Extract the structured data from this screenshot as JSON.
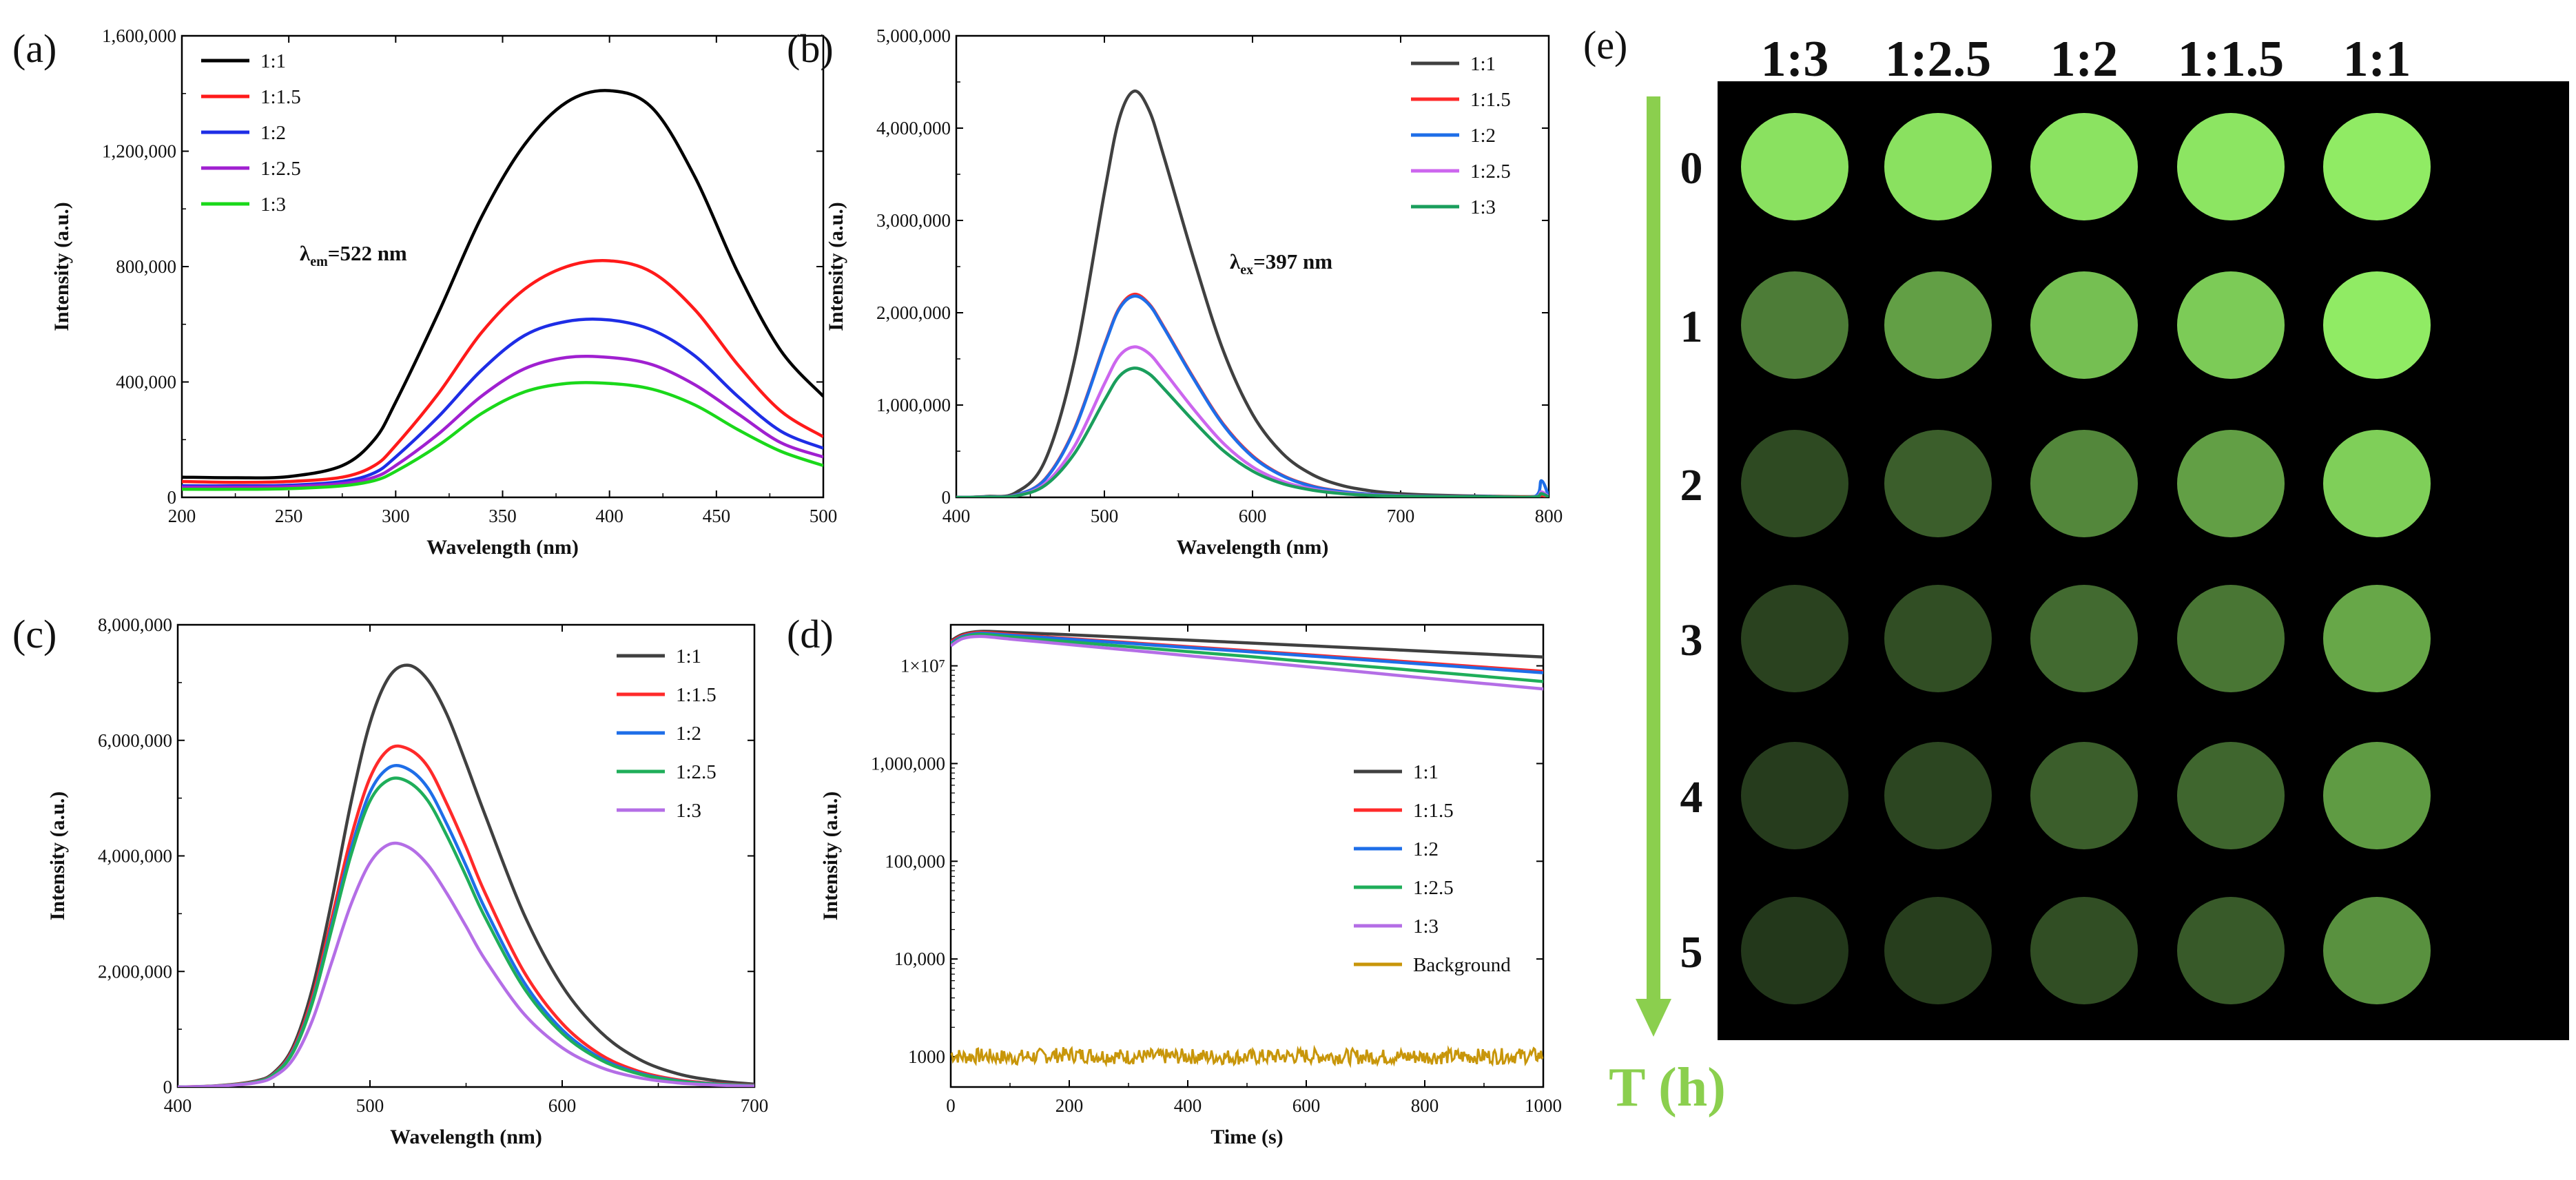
{
  "chart_data": [
    {
      "panel": "(a)",
      "type": "line",
      "xlabel": "Wavelength (nm)",
      "ylabel": "Intensity (a.u.)",
      "xlim": [
        200,
        500
      ],
      "ylim": [
        0,
        1600000
      ],
      "xticks": [
        200,
        250,
        300,
        350,
        400,
        450,
        500
      ],
      "yticks": [
        0,
        400000,
        800000,
        1200000,
        1600000
      ],
      "ytick_labels": [
        "0",
        "400,000",
        "800,000",
        "1,200,000",
        "1,600,000"
      ],
      "annotation": {
        "symbol": "λ",
        "sub": "em",
        "value": "=522 nm"
      },
      "legend_position": "top-left",
      "x": [
        200,
        225,
        250,
        275,
        290,
        300,
        320,
        340,
        360,
        380,
        400,
        420,
        440,
        460,
        480,
        500
      ],
      "series": [
        {
          "name": "1:1",
          "color": "#000000",
          "values": [
            70000,
            68000,
            72000,
            110000,
            200000,
            330000,
            640000,
            970000,
            1220000,
            1370000,
            1410000,
            1350000,
            1110000,
            780000,
            510000,
            350000
          ]
        },
        {
          "name": "1:1.5",
          "color": "#ff1a1a",
          "values": [
            55000,
            52000,
            55000,
            70000,
            110000,
            180000,
            360000,
            570000,
            720000,
            800000,
            820000,
            780000,
            650000,
            460000,
            300000,
            210000
          ]
        },
        {
          "name": "1:2",
          "color": "#1e2de6",
          "values": [
            40000,
            40000,
            42000,
            55000,
            85000,
            140000,
            280000,
            440000,
            560000,
            610000,
            615000,
            580000,
            490000,
            350000,
            230000,
            170000
          ]
        },
        {
          "name": "1:2.5",
          "color": "#a020d0",
          "values": [
            35000,
            35000,
            37000,
            48000,
            70000,
            110000,
            220000,
            350000,
            445000,
            485000,
            485000,
            460000,
            390000,
            290000,
            190000,
            140000
          ]
        },
        {
          "name": "1:3",
          "color": "#1ad81a",
          "values": [
            28000,
            28000,
            30000,
            40000,
            58000,
            90000,
            180000,
            290000,
            365000,
            395000,
            395000,
            375000,
            320000,
            235000,
            160000,
            110000
          ]
        }
      ]
    },
    {
      "panel": "(b)",
      "type": "line",
      "xlabel": "Wavelength (nm)",
      "ylabel": "Intensity (a.u.)",
      "xlim": [
        400,
        800
      ],
      "ylim": [
        0,
        5000000
      ],
      "xticks": [
        400,
        500,
        600,
        700,
        800
      ],
      "yticks": [
        0,
        1000000,
        2000000,
        3000000,
        4000000,
        5000000
      ],
      "ytick_labels": [
        "0",
        "1,000,000",
        "2,000,000",
        "3,000,000",
        "4,000,000",
        "5,000,000"
      ],
      "annotation": {
        "symbol": "λ",
        "sub": "ex",
        "value": "=397 nm"
      },
      "legend_position": "top-right",
      "x": [
        400,
        420,
        440,
        460,
        480,
        500,
        510,
        520,
        530,
        540,
        560,
        580,
        600,
        620,
        640,
        660,
        680,
        700,
        720,
        760,
        790,
        795,
        800
      ],
      "series": [
        {
          "name": "1:1",
          "color": "#404040",
          "values": [
            0,
            10000,
            50000,
            400000,
            1500000,
            3300000,
            4100000,
            4400000,
            4200000,
            3700000,
            2600000,
            1600000,
            900000,
            480000,
            250000,
            130000,
            70000,
            40000,
            25000,
            12000,
            8000,
            30000,
            10000
          ]
        },
        {
          "name": "1:1.5",
          "color": "#ff2a2a",
          "values": [
            0,
            5000,
            25000,
            200000,
            750000,
            1650000,
            2050000,
            2200000,
            2100000,
            1850000,
            1300000,
            800000,
            450000,
            240000,
            125000,
            65000,
            35000,
            20000,
            13000,
            8000,
            6000,
            20000,
            6000
          ]
        },
        {
          "name": "1:2",
          "color": "#1e6ee8",
          "values": [
            0,
            5000,
            25000,
            195000,
            740000,
            1640000,
            2040000,
            2180000,
            2090000,
            1840000,
            1290000,
            790000,
            440000,
            235000,
            120000,
            63000,
            34000,
            19000,
            12000,
            8000,
            6000,
            180000,
            10000
          ]
        },
        {
          "name": "1:2.5",
          "color": "#cc66ee",
          "values": [
            0,
            4000,
            19000,
            150000,
            560000,
            1230000,
            1530000,
            1630000,
            1560000,
            1370000,
            960000,
            590000,
            330000,
            175000,
            92000,
            48000,
            26000,
            15000,
            10000,
            6000,
            5000,
            60000,
            5000
          ]
        },
        {
          "name": "1:3",
          "color": "#1a9e5c",
          "values": [
            0,
            3000,
            16000,
            130000,
            480000,
            1050000,
            1310000,
            1400000,
            1340000,
            1180000,
            830000,
            510000,
            285000,
            150000,
            79000,
            41000,
            22000,
            13000,
            8000,
            5000,
            4000,
            40000,
            4000
          ]
        }
      ]
    },
    {
      "panel": "(c)",
      "type": "line",
      "xlabel": "Wavelength (nm)",
      "ylabel": "Intensity (a.u.)",
      "xlim": [
        400,
        700
      ],
      "ylim": [
        0,
        8000000
      ],
      "xticks": [
        400,
        500,
        600,
        700
      ],
      "yticks": [
        0,
        2000000,
        4000000,
        6000000,
        8000000
      ],
      "ytick_labels": [
        "0",
        "2,000,000",
        "4,000,000",
        "6,000,000",
        "8,000,000"
      ],
      "legend_position": "top-right",
      "x": [
        400,
        420,
        440,
        450,
        460,
        470,
        480,
        490,
        500,
        510,
        520,
        530,
        540,
        550,
        560,
        580,
        600,
        620,
        640,
        660,
        680,
        700
      ],
      "series": [
        {
          "name": "1:1",
          "color": "#404040",
          "values": [
            0,
            20000,
            100000,
            250000,
            700000,
            1700000,
            3200000,
            4900000,
            6300000,
            7100000,
            7300000,
            7050000,
            6450000,
            5600000,
            4700000,
            3000000,
            1750000,
            950000,
            480000,
            230000,
            110000,
            50000
          ]
        },
        {
          "name": "1:1.5",
          "color": "#ff2a2a",
          "values": [
            0,
            18000,
            90000,
            230000,
            650000,
            1550000,
            2900000,
            4300000,
            5350000,
            5850000,
            5850000,
            5550000,
            4900000,
            4150000,
            3350000,
            2000000,
            1100000,
            560000,
            270000,
            125000,
            60000,
            30000
          ]
        },
        {
          "name": "1:2",
          "color": "#1e6ee8",
          "values": [
            0,
            17000,
            85000,
            220000,
            620000,
            1480000,
            2780000,
            4100000,
            5100000,
            5530000,
            5500000,
            5180000,
            4550000,
            3830000,
            3080000,
            1820000,
            990000,
            500000,
            240000,
            110000,
            52000,
            25000
          ]
        },
        {
          "name": "1:2.5",
          "color": "#1fae5a",
          "values": [
            0,
            16000,
            82000,
            215000,
            600000,
            1450000,
            2720000,
            4000000,
            4950000,
            5320000,
            5280000,
            4960000,
            4350000,
            3650000,
            2930000,
            1720000,
            930000,
            470000,
            225000,
            102000,
            48000,
            22000
          ]
        },
        {
          "name": "1:3",
          "color": "#b46ee6",
          "values": [
            0,
            14000,
            70000,
            180000,
            480000,
            1150000,
            2150000,
            3150000,
            3880000,
            4200000,
            4150000,
            3850000,
            3350000,
            2780000,
            2200000,
            1270000,
            680000,
            340000,
            160000,
            72000,
            33000,
            15000
          ]
        }
      ]
    },
    {
      "panel": "(d)",
      "type": "line",
      "yscale": "log",
      "xlabel": "Time (s)",
      "ylabel": "Intensity (a.u.)",
      "xlim": [
        0,
        1000
      ],
      "ylim_log10": [
        2.69,
        7.42
      ],
      "xticks": [
        0,
        200,
        400,
        600,
        800,
        1000
      ],
      "yticks": [
        1000,
        10000,
        100000,
        1000000,
        10000000
      ],
      "ytick_labels": [
        "1000",
        "10,000",
        "100,000",
        "1,000,000",
        "1×10⁷"
      ],
      "legend_position": "center-right",
      "x": [
        0,
        20,
        50,
        100,
        200,
        300,
        400,
        500,
        600,
        700,
        800,
        900,
        1000
      ],
      "series": [
        {
          "name": "1:1",
          "color": "#404040",
          "values": [
            18000000,
            21000000,
            22500000,
            22000000,
            20800000,
            19500000,
            18300000,
            17200000,
            16100000,
            15100000,
            14100000,
            13200000,
            12300000
          ]
        },
        {
          "name": "1:1.5",
          "color": "#ff2a2a",
          "values": [
            17500000,
            20500000,
            22000000,
            21000000,
            19000000,
            17300000,
            15700000,
            14300000,
            13000000,
            11800000,
            10700000,
            9700000,
            8800000
          ]
        },
        {
          "name": "1:2",
          "color": "#1e6ee8",
          "values": [
            17000000,
            20000000,
            21500000,
            20600000,
            18700000,
            17000000,
            15400000,
            14000000,
            12700000,
            11500000,
            10400000,
            9400000,
            8500000
          ]
        },
        {
          "name": "1:2.5",
          "color": "#1fae5a",
          "values": [
            16500000,
            19500000,
            21000000,
            19800000,
            17600000,
            15700000,
            14000000,
            12500000,
            11100000,
            9900000,
            8800000,
            7800000,
            6900000
          ]
        },
        {
          "name": "1:3",
          "color": "#b46ee6",
          "values": [
            16000000,
            19000000,
            20000000,
            18800000,
            16500000,
            14500000,
            12700000,
            11200000,
            9800000,
            8600000,
            7500000,
            6600000,
            5800000
          ]
        },
        {
          "name": "Background",
          "color": "#c8960a",
          "noise": true,
          "values": [
            1050,
            1000,
            1020,
            980,
            1050,
            1000,
            1010,
            990,
            1020,
            1000,
            1000,
            1010,
            1030
          ]
        }
      ]
    },
    {
      "panel": "(e)",
      "type": "heatmap",
      "description_label": "T (h)",
      "columns": [
        "1:3",
        "1:2.5",
        "1:2",
        "1:1.5",
        "1:1"
      ],
      "rows": [
        "0",
        "1",
        "2",
        "3",
        "4",
        "5"
      ],
      "intensity": [
        [
          0.95,
          0.95,
          0.96,
          0.97,
          1.0
        ],
        [
          0.45,
          0.62,
          0.78,
          0.84,
          1.0
        ],
        [
          0.2,
          0.3,
          0.5,
          0.62,
          0.86
        ],
        [
          0.16,
          0.22,
          0.36,
          0.42,
          0.66
        ],
        [
          0.13,
          0.18,
          0.3,
          0.34,
          0.6
        ],
        [
          0.11,
          0.14,
          0.22,
          0.28,
          0.55
        ]
      ]
    }
  ]
}
